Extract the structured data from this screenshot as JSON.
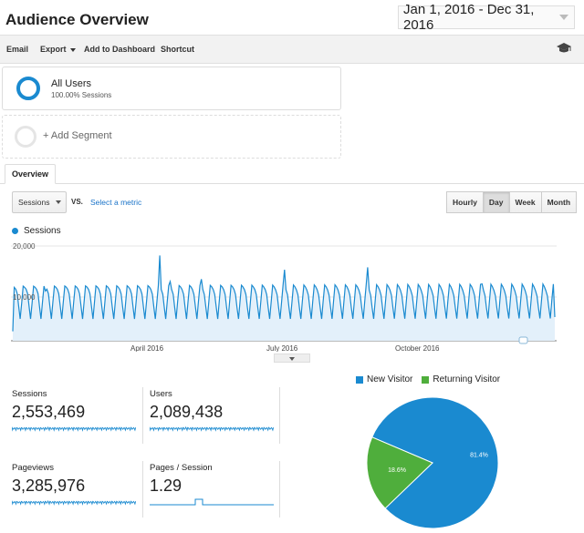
{
  "header": {
    "title": "Audience Overview",
    "date_range": "Jan 1, 2016 - Dec 31, 2016"
  },
  "toolbar": {
    "email": "Email",
    "export": "Export",
    "add_to_dashboard": "Add to Dashboard",
    "shortcut": "Shortcut"
  },
  "segments": {
    "active": {
      "name": "All Users",
      "sub": "100.00% Sessions"
    },
    "add": "+ Add Segment"
  },
  "tabs": {
    "overview": "Overview"
  },
  "controls": {
    "metric": "Sessions",
    "vs": "VS.",
    "select_metric": "Select a metric",
    "ranges": [
      "Hourly",
      "Day",
      "Week",
      "Month"
    ],
    "active_range": "Day"
  },
  "chart_legend": "Sessions",
  "colors": {
    "accent": "#1a8ad0",
    "returning": "#4fae3c"
  },
  "chart_data": {
    "type": "area",
    "title": "",
    "series": [
      {
        "name": "Sessions"
      }
    ],
    "y_ticks": [
      "20,000",
      "10,000"
    ],
    "x_ticks": [
      "April 2016",
      "July 2016",
      "October 2016"
    ],
    "ylim": [
      0,
      20000
    ],
    "weekly_pattern": [
      11500,
      10800,
      10300,
      9700,
      7500,
      5200,
      8500
    ],
    "spikes": [
      {
        "week": 3,
        "value": 10500
      },
      {
        "week": 14,
        "value": 18000
      },
      {
        "week": 15,
        "value": 12500
      },
      {
        "week": 18,
        "value": 13000
      },
      {
        "week": 26,
        "value": 15000
      },
      {
        "week": 34,
        "value": 15500
      },
      {
        "week": 45,
        "value": 12000
      }
    ]
  },
  "stats": [
    {
      "label": "Sessions",
      "value": "2,553,469"
    },
    {
      "label": "Users",
      "value": "2,089,438"
    },
    {
      "label": "Pageviews",
      "value": "3,285,976"
    },
    {
      "label": "Pages / Session",
      "value": "1.29"
    }
  ],
  "pie": {
    "type": "pie",
    "legend": [
      "New Visitor",
      "Returning Visitor"
    ],
    "slices": [
      {
        "name": "New Visitor",
        "value": 81.4,
        "label": "81.4%",
        "color": "#1a8ad0"
      },
      {
        "name": "Returning Visitor",
        "value": 18.6,
        "label": "18.6%",
        "color": "#4fae3c"
      }
    ]
  }
}
